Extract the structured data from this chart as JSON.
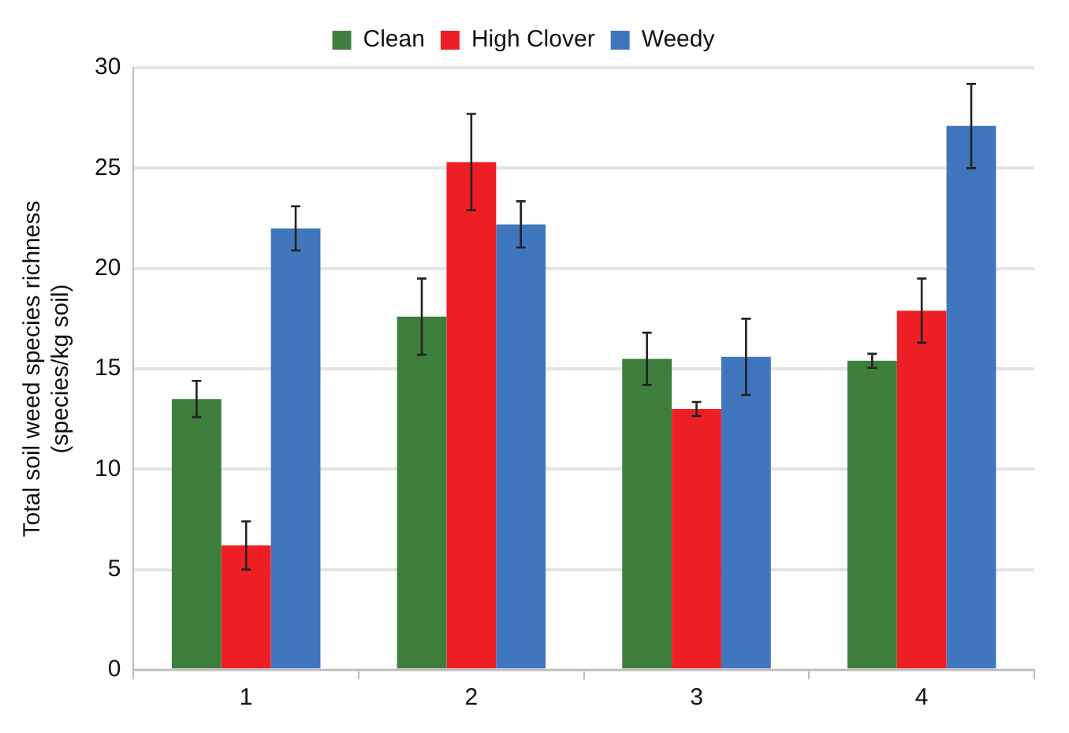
{
  "chart_data": {
    "type": "bar",
    "ylabel": "Total soil weed species richness\n(species/kg soil)",
    "categories": [
      "1",
      "2",
      "3",
      "4"
    ],
    "series": [
      {
        "name": "Clean",
        "color": "#3e7e3c",
        "values": [
          13.5,
          17.6,
          15.5,
          15.4
        ],
        "errors": [
          0.9,
          1.9,
          1.3,
          0.35
        ]
      },
      {
        "name": "High Clover",
        "color": "#ee1f24",
        "values": [
          6.2,
          25.3,
          13.0,
          17.9
        ],
        "errors": [
          1.2,
          2.4,
          0.35,
          1.6
        ]
      },
      {
        "name": "Weedy",
        "color": "#4076bd",
        "values": [
          22.0,
          22.2,
          15.6,
          27.1
        ],
        "errors": [
          1.1,
          1.15,
          1.9,
          2.1
        ]
      }
    ],
    "ylim": [
      0,
      30
    ],
    "yticks": [
      0,
      5,
      10,
      15,
      20,
      25,
      30
    ],
    "grid": "y",
    "legend": "top"
  }
}
